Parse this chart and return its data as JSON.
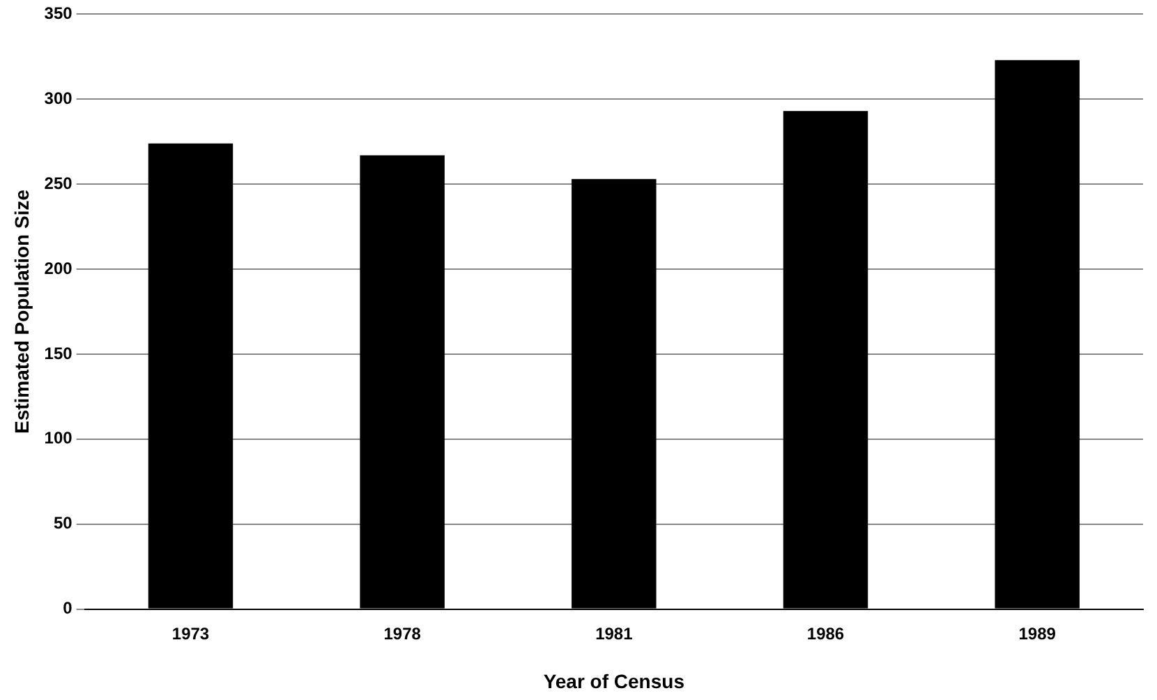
{
  "chart_data": {
    "type": "bar",
    "xlabel": "Year of Census",
    "ylabel": "Estimated Population Size",
    "categories": [
      "1973",
      "1978",
      "1981",
      "1986",
      "1989"
    ],
    "values": [
      274,
      267,
      253,
      293,
      323
    ],
    "color": "#000000",
    "ylim": [
      0,
      350
    ],
    "yticks": [
      0,
      50,
      100,
      150,
      200,
      250,
      300,
      350
    ],
    "grid": "y",
    "legend": false
  }
}
